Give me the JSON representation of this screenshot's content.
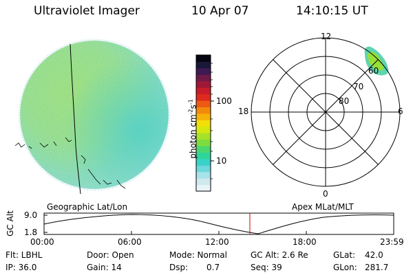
{
  "header": {
    "instrument": "Ultraviolet Imager",
    "date": "10 Apr 07",
    "time": "14:10:15 UT"
  },
  "colorbar": {
    "label": "photon cm",
    "label_sup1": "-2",
    "label_mid": "s",
    "label_sup2": "-1",
    "ticks": [
      {
        "label": "100",
        "value": 100
      },
      {
        "label": "10",
        "value": 10
      }
    ],
    "colors": [
      "#e8f4f8",
      "#cfe9ef",
      "#a8e2ea",
      "#6ed8dc",
      "#38d2c8",
      "#2fd69a",
      "#49d86e",
      "#7ddc3e",
      "#a6e22a",
      "#d4e810",
      "#f2de08",
      "#f5b208",
      "#f28a0c",
      "#ee5a14",
      "#e02a1e",
      "#c81c2a",
      "#a01838",
      "#701a48",
      "#3e1a52",
      "#1a1838",
      "#060612"
    ]
  },
  "polar": {
    "labels": {
      "top": "12",
      "bottom": "0",
      "left": "18",
      "right": "6"
    },
    "rings": [
      {
        "label": "80",
        "lat": 80
      },
      {
        "label": "70",
        "lat": 70
      },
      {
        "label": "60",
        "lat": 60
      }
    ]
  },
  "projection_labels": {
    "left": "Geographic Lat/Lon",
    "right": "Apex MLat/MLT"
  },
  "altitude_plot": {
    "ylabel": "GC Alt",
    "y_ticks": [
      "9.0",
      "1.8"
    ],
    "ylim": [
      1.8,
      9.0
    ],
    "x_ticks": [
      "00:00",
      "06:00",
      "12:00",
      "18:00",
      "23:59"
    ],
    "current_time": "14:10:15",
    "marker_color": "#cc0000"
  },
  "info": {
    "flt": "Flt: LBHL",
    "ip": "IP: 36.0",
    "door": "Door: Open",
    "gain": "Gain: 14",
    "mode": "Mode: Normal",
    "dsp_label": "Dsp:",
    "dsp_value": "0.7",
    "gcalt": "GC Alt: 2.6 Re",
    "seq": "Seq: 39",
    "glat_label": "GLat:",
    "glat_value": "42.0",
    "glon_label": "GLon:",
    "glon_value": "281.7"
  }
}
